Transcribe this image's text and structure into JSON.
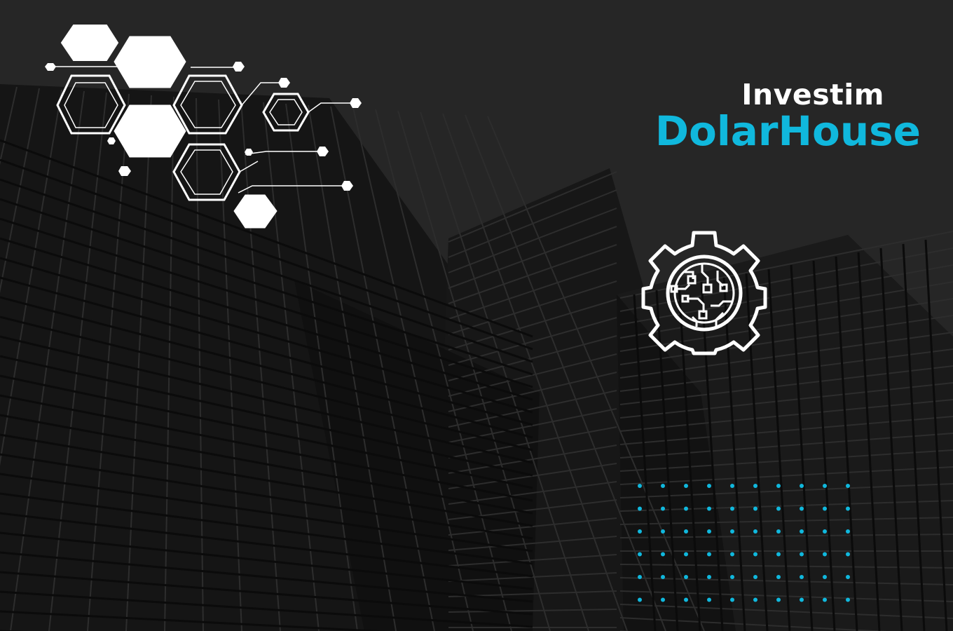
{
  "brand": {
    "line1": "Investim",
    "line2": "DolarHouse",
    "accent_color": "#10b8dd",
    "text_color": "#ffffff"
  },
  "background": {
    "description_icon": "building-facade-background",
    "base_color": "#262626"
  },
  "icons": {
    "gear": "circuit-gear-icon",
    "hexagons": "hexagon-network-graphic",
    "dots": "dot-grid-pattern"
  }
}
